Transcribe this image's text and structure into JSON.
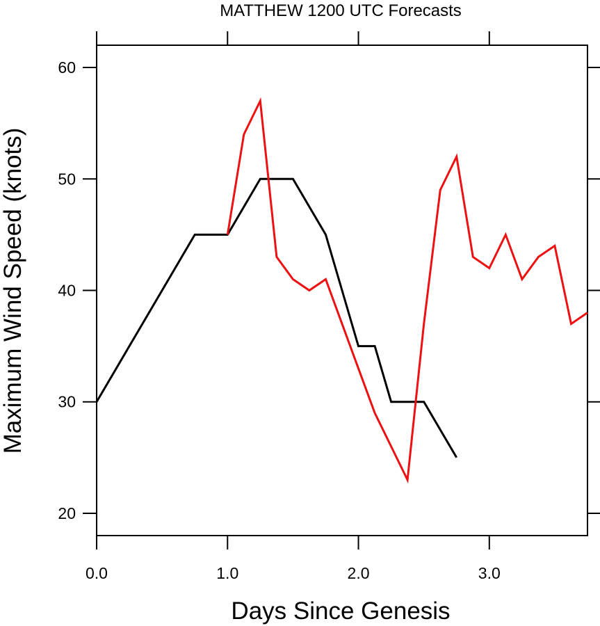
{
  "chart_data": {
    "type": "line",
    "title": "MATTHEW 1200 UTC Forecasts",
    "xlabel": "Days Since Genesis",
    "ylabel": "Maximum Wind Speed (knots)",
    "xlim": [
      0,
      3.75
    ],
    "ylim": [
      18,
      62
    ],
    "x_ticks": [
      0,
      1,
      2,
      3
    ],
    "x_tick_labels": [
      "0.0",
      "1.0",
      "2.0",
      "3.0"
    ],
    "y_ticks": [
      20,
      30,
      40,
      50,
      60
    ],
    "y_tick_labels": [
      "20",
      "30",
      "40",
      "50",
      "60"
    ],
    "grid": false,
    "series": [
      {
        "color": "#000000",
        "x": [
          0,
          0.75,
          1.0,
          1.25,
          1.5,
          1.75,
          2.0,
          2.125,
          2.25,
          2.5,
          2.75
        ],
        "y": [
          30,
          45,
          45,
          50,
          50,
          45,
          35,
          35,
          30,
          30,
          25
        ]
      },
      {
        "color": "#ee1111",
        "x": [
          1.0,
          1.125,
          1.25,
          1.375,
          1.5,
          1.625,
          1.75,
          2.0,
          2.125,
          2.375,
          2.5,
          2.625,
          2.75,
          2.875,
          3.0,
          3.125,
          3.25,
          3.375,
          3.5,
          3.625,
          3.75
        ],
        "y": [
          45,
          54,
          57,
          43,
          41,
          40,
          41,
          33,
          29,
          23,
          37,
          49,
          52,
          43,
          42,
          45,
          41,
          43,
          44,
          37,
          38
        ]
      }
    ]
  }
}
